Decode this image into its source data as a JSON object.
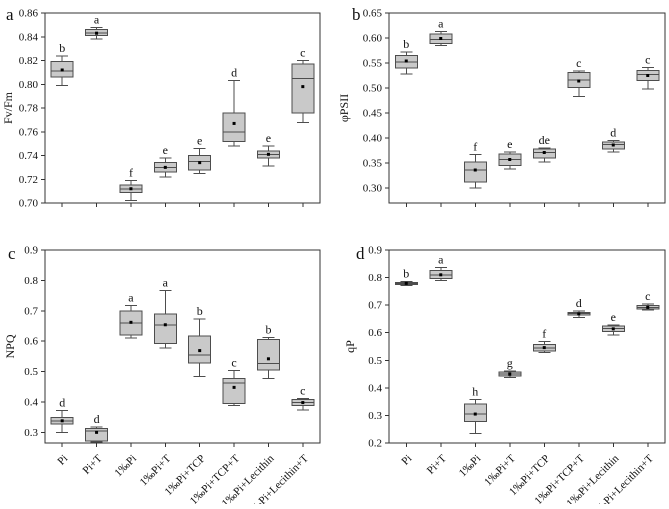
{
  "figure": {
    "background": "#ffffff",
    "box_fill": "#c9c9c9",
    "box_stroke": "#4d4d4d",
    "axis_color": "#333333",
    "text_color": "#111111",
    "mean_marker_color": "#000000",
    "mean_marker": "small-black-square"
  },
  "categories": [
    "Pi",
    "Pi+T",
    "1‰Pi",
    "1‰Pi+T",
    "1‰Pi+TCP",
    "1‰Pi+TCP+T",
    "1‰Pi+Lecithin",
    "1‰Pi+Lecithin+T"
  ],
  "chart_data": [
    {
      "type": "box",
      "panel_letter": "a",
      "ylabel": "Fv/Fm",
      "ylim": [
        0.7,
        0.86
      ],
      "yticks": [
        0.7,
        0.72,
        0.74,
        0.76,
        0.78,
        0.8,
        0.82,
        0.84,
        0.86
      ],
      "ytick_decimals": 2,
      "grid": false,
      "show_x_labels": false,
      "categories": [
        "Pi",
        "Pi+T",
        "1‰Pi",
        "1‰Pi+T",
        "1‰Pi+TCP",
        "1‰Pi+TCP+T",
        "1‰Pi+Lecithin",
        "1‰Pi+Lecithin+T"
      ],
      "series": [
        {
          "category": "Pi",
          "sig": "b",
          "low": 0.799,
          "q1": 0.806,
          "median": 0.811,
          "q3": 0.819,
          "high": 0.824,
          "mean": 0.812
        },
        {
          "category": "Pi+T",
          "sig": "a",
          "low": 0.838,
          "q1": 0.841,
          "median": 0.843,
          "q3": 0.846,
          "high": 0.848,
          "mean": 0.843
        },
        {
          "category": "1‰Pi",
          "sig": "f",
          "low": 0.702,
          "q1": 0.709,
          "median": 0.712,
          "q3": 0.715,
          "high": 0.719,
          "mean": 0.712
        },
        {
          "category": "1‰Pi+T",
          "sig": "e",
          "low": 0.722,
          "q1": 0.726,
          "median": 0.73,
          "q3": 0.734,
          "high": 0.738,
          "mean": 0.73
        },
        {
          "category": "1‰Pi+TCP",
          "sig": "e",
          "low": 0.725,
          "q1": 0.728,
          "median": 0.735,
          "q3": 0.74,
          "high": 0.746,
          "mean": 0.734
        },
        {
          "category": "1‰Pi+TCP+T",
          "sig": "d",
          "low": 0.748,
          "q1": 0.752,
          "median": 0.76,
          "q3": 0.776,
          "high": 0.803,
          "mean": 0.767
        },
        {
          "category": "1‰Pi+Lecithin",
          "sig": "e",
          "low": 0.731,
          "q1": 0.738,
          "median": 0.741,
          "q3": 0.744,
          "high": 0.748,
          "mean": 0.741
        },
        {
          "category": "1‰Pi+Lecithin+T",
          "sig": "c",
          "low": 0.768,
          "q1": 0.776,
          "median": 0.805,
          "q3": 0.817,
          "high": 0.82,
          "mean": 0.798
        }
      ]
    },
    {
      "type": "box",
      "panel_letter": "b",
      "ylabel": "φPSII",
      "ylim": [
        0.27,
        0.65
      ],
      "yticks": [
        0.3,
        0.35,
        0.4,
        0.45,
        0.5,
        0.55,
        0.6,
        0.65
      ],
      "ytick_decimals": 2,
      "grid": false,
      "show_x_labels": false,
      "categories": [
        "Pi",
        "Pi+T",
        "1‰Pi",
        "1‰Pi+T",
        "1‰Pi+TCP",
        "1‰Pi+TCP+T",
        "1‰Pi+Lecithin",
        "1‰Pi+Lecithin+T"
      ],
      "series": [
        {
          "category": "Pi",
          "sig": "b",
          "low": 0.528,
          "q1": 0.54,
          "median": 0.552,
          "q3": 0.565,
          "high": 0.572,
          "mean": 0.554
        },
        {
          "category": "Pi+T",
          "sig": "a",
          "low": 0.585,
          "q1": 0.589,
          "median": 0.597,
          "q3": 0.608,
          "high": 0.613,
          "mean": 0.599
        },
        {
          "category": "1‰Pi",
          "sig": "f",
          "low": 0.3,
          "q1": 0.312,
          "median": 0.336,
          "q3": 0.352,
          "high": 0.367,
          "mean": 0.336
        },
        {
          "category": "1‰Pi+T",
          "sig": "e",
          "low": 0.338,
          "q1": 0.345,
          "median": 0.357,
          "q3": 0.368,
          "high": 0.372,
          "mean": 0.357
        },
        {
          "category": "1‰Pi+TCP",
          "sig": "de",
          "low": 0.352,
          "q1": 0.36,
          "median": 0.371,
          "q3": 0.378,
          "high": 0.38,
          "mean": 0.371
        },
        {
          "category": "1‰Pi+TCP+T",
          "sig": "c",
          "low": 0.483,
          "q1": 0.501,
          "median": 0.516,
          "q3": 0.531,
          "high": 0.534,
          "mean": 0.514
        },
        {
          "category": "1‰Pi+Lecithin",
          "sig": "d",
          "low": 0.372,
          "q1": 0.378,
          "median": 0.387,
          "q3": 0.392,
          "high": 0.395,
          "mean": 0.386
        },
        {
          "category": "1‰Pi+Lecithin+T",
          "sig": "c",
          "low": 0.498,
          "q1": 0.515,
          "median": 0.527,
          "q3": 0.535,
          "high": 0.541,
          "mean": 0.525
        }
      ]
    },
    {
      "type": "box",
      "panel_letter": "c",
      "ylabel": "NPQ",
      "ylim": [
        0.265,
        0.9
      ],
      "yticks": [
        0.3,
        0.4,
        0.5,
        0.6,
        0.7,
        0.8,
        0.9
      ],
      "ytick_decimals": 1,
      "grid": false,
      "show_x_labels": true,
      "categories": [
        "Pi",
        "Pi+T",
        "1‰Pi",
        "1‰Pi+T",
        "1‰Pi+TCP",
        "1‰Pi+TCP+T",
        "1‰Pi+Lecithin",
        "1‰Pi+Lecithin+T"
      ],
      "series": [
        {
          "category": "Pi",
          "sig": "d",
          "low": 0.3,
          "q1": 0.328,
          "median": 0.338,
          "q3": 0.349,
          "high": 0.372,
          "mean": 0.338
        },
        {
          "category": "Pi+T",
          "sig": "d",
          "low": 0.268,
          "q1": 0.272,
          "median": 0.305,
          "q3": 0.313,
          "high": 0.318,
          "mean": 0.3
        },
        {
          "category": "1‰Pi",
          "sig": "a",
          "low": 0.61,
          "q1": 0.62,
          "median": 0.66,
          "q3": 0.7,
          "high": 0.717,
          "mean": 0.662
        },
        {
          "category": "1‰Pi+T",
          "sig": "a",
          "low": 0.577,
          "q1": 0.593,
          "median": 0.653,
          "q3": 0.69,
          "high": 0.767,
          "mean": 0.654
        },
        {
          "category": "1‰Pi+TCP",
          "sig": "b",
          "low": 0.483,
          "q1": 0.528,
          "median": 0.555,
          "q3": 0.617,
          "high": 0.673,
          "mean": 0.569
        },
        {
          "category": "1‰Pi+TCP+T",
          "sig": "c",
          "low": 0.388,
          "q1": 0.395,
          "median": 0.462,
          "q3": 0.477,
          "high": 0.503,
          "mean": 0.448
        },
        {
          "category": "1‰Pi+Lecithin",
          "sig": "b",
          "low": 0.478,
          "q1": 0.505,
          "median": 0.527,
          "q3": 0.605,
          "high": 0.612,
          "mean": 0.542
        },
        {
          "category": "1‰Pi+Lecithin+T",
          "sig": "c",
          "low": 0.373,
          "q1": 0.388,
          "median": 0.398,
          "q3": 0.408,
          "high": 0.412,
          "mean": 0.398
        }
      ]
    },
    {
      "type": "box",
      "panel_letter": "d",
      "ylabel": "qP",
      "ylim": [
        0.2,
        0.9
      ],
      "yticks": [
        0.2,
        0.3,
        0.4,
        0.5,
        0.6,
        0.7,
        0.8,
        0.9
      ],
      "ytick_decimals": 1,
      "grid": false,
      "show_x_labels": true,
      "categories": [
        "Pi",
        "Pi+T",
        "1‰Pi",
        "1‰Pi+T",
        "1‰Pi+TCP",
        "1‰Pi+TCP+T",
        "1‰Pi+Lecithin",
        "1‰Pi+Lecithin+T"
      ],
      "series": [
        {
          "category": "Pi",
          "sig": "b",
          "low": 0.771,
          "q1": 0.774,
          "median": 0.778,
          "q3": 0.783,
          "high": 0.786,
          "mean": 0.779
        },
        {
          "category": "Pi+T",
          "sig": "a",
          "low": 0.79,
          "q1": 0.796,
          "median": 0.81,
          "q3": 0.826,
          "high": 0.836,
          "mean": 0.81
        },
        {
          "category": "1‰Pi",
          "sig": "h",
          "low": 0.235,
          "q1": 0.278,
          "median": 0.305,
          "q3": 0.342,
          "high": 0.358,
          "mean": 0.305
        },
        {
          "category": "1‰Pi+T",
          "sig": "g",
          "low": 0.438,
          "q1": 0.443,
          "median": 0.45,
          "q3": 0.457,
          "high": 0.462,
          "mean": 0.45
        },
        {
          "category": "1‰Pi+TCP",
          "sig": "f",
          "low": 0.528,
          "q1": 0.533,
          "median": 0.545,
          "q3": 0.557,
          "high": 0.568,
          "mean": 0.546
        },
        {
          "category": "1‰Pi+TCP+T",
          "sig": "d",
          "low": 0.655,
          "q1": 0.664,
          "median": 0.669,
          "q3": 0.674,
          "high": 0.678,
          "mean": 0.668
        },
        {
          "category": "1‰Pi+Lecithin",
          "sig": "e",
          "low": 0.592,
          "q1": 0.605,
          "median": 0.615,
          "q3": 0.624,
          "high": 0.628,
          "mean": 0.614
        },
        {
          "category": "1‰Pi+Lecithin+T",
          "sig": "c",
          "low": 0.682,
          "q1": 0.686,
          "median": 0.692,
          "q3": 0.699,
          "high": 0.705,
          "mean": 0.692
        }
      ]
    }
  ]
}
